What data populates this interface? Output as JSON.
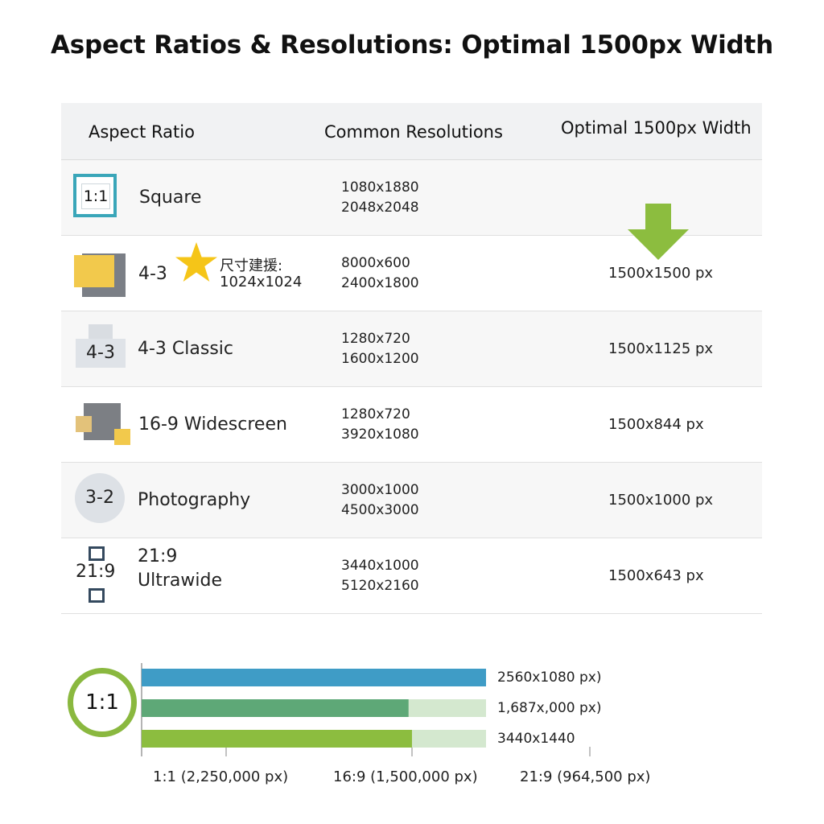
{
  "title": "Aspect Ratios & Resolutions: Optimal 1500px Width",
  "table": {
    "headers": {
      "aspect_ratio": "Aspect Ratio",
      "common_resolutions": "Common Resolutions",
      "optimal_width": "Optimal 1500px Width"
    },
    "rows": [
      {
        "icon_text": "1:1",
        "icon": "square-badge-icon",
        "name": "Square",
        "res1": "1080x1880",
        "res2": "2048x2048",
        "optimal": ""
      },
      {
        "icon_text": "",
        "icon": "stacked-rectangles-icon",
        "name": "4-3",
        "note_line1": "尺寸建援:",
        "note_line2": "1024x1024",
        "res1": "8000x600",
        "res2": "2400x1800",
        "optimal": "1500x1500 px"
      },
      {
        "icon_text": "4-3",
        "icon": "classic-frame-icon",
        "name": "4-3 Classic",
        "res1": "1280x720",
        "res2": "1600x1200",
        "optimal": "1500x1125 px"
      },
      {
        "icon_text": "",
        "icon": "widescreen-squares-icon",
        "name": "16-9 Widescreen",
        "res1": "1280x720",
        "res2": "3920x1080",
        "optimal": "1500x844 px"
      },
      {
        "icon_text": "3-2",
        "icon": "circle-badge-icon",
        "name": "Photography",
        "res1": "3000x1000",
        "res2": "4500x3000",
        "optimal": "1500x1000 px"
      },
      {
        "icon_text": "21:9",
        "icon": "ultrawide-frame-icon",
        "name_line1": "21:9",
        "name_line2": "Ultrawide",
        "res1": "3440x1000",
        "res2": "5120x2160",
        "optimal": "1500x643 px"
      }
    ]
  },
  "colors": {
    "blue": "#3f9cc6",
    "green_dark": "#5ea877",
    "green_light": "#8cbd3f",
    "track": "#d4e8cf",
    "arrow": "#8cbd3f",
    "star": "#f5c518"
  },
  "chart_data": {
    "type": "bar",
    "orientation": "horizontal",
    "badge": "1:1",
    "bars": [
      {
        "label": "2560x1080 px)",
        "value": 1.0,
        "track": 1.0,
        "color": "#3f9cc6"
      },
      {
        "label": "1,687x,000 px)",
        "value": 0.775,
        "track": 1.0,
        "color": "#5ea877"
      },
      {
        "label": "3440x1440",
        "value": 0.785,
        "track": 1.0,
        "color": "#8cbd3f"
      }
    ],
    "tick_labels": [
      "1:1 (2,250,000 px)",
      "16:9 (1,500,000 px)",
      "21:9 (964,500 px)"
    ]
  }
}
